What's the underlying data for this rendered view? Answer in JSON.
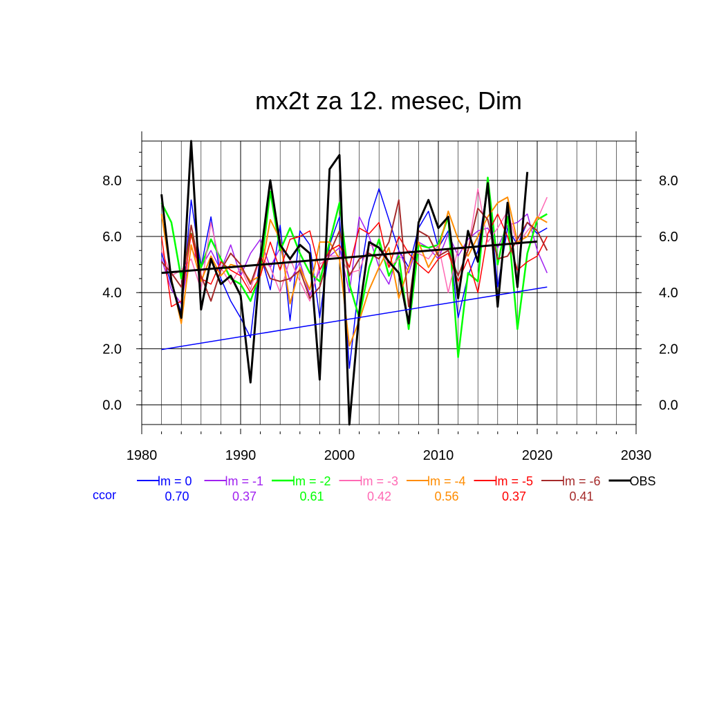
{
  "chart_data": {
    "type": "line",
    "title": "mx2t za 12. mesec, Dim",
    "xlim": [
      1980,
      2030
    ],
    "ylim": [
      -0.7,
      9.4
    ],
    "x_ticks": [
      1980,
      1990,
      2000,
      2010,
      2020,
      2030
    ],
    "x_tick_labels": [
      "1980",
      "1990",
      "2000",
      "2010",
      "2020",
      "2030"
    ],
    "y_ticks": [
      0,
      2,
      4,
      6,
      8
    ],
    "y_tick_labels": [
      "0.0",
      "2.0",
      "4.0",
      "6.0",
      "8.0"
    ],
    "grid": true,
    "legend_position": "bottom",
    "ccor_label": "ccor",
    "ccor_color": "#0000ff",
    "years_model": [
      1982,
      1983,
      1984,
      1985,
      1986,
      1987,
      1988,
      1989,
      1990,
      1991,
      1992,
      1993,
      1994,
      1995,
      1996,
      1997,
      1998,
      1999,
      2000,
      2001,
      2002,
      2003,
      2004,
      2005,
      2006,
      2007,
      2008,
      2009,
      2010,
      2011,
      2012,
      2013,
      2014,
      2015,
      2016,
      2017,
      2018,
      2019,
      2020,
      2021
    ],
    "series": [
      {
        "name": "lm = 0",
        "ccor": "0.70",
        "color": "#0000ff",
        "width": 1.5,
        "values": [
          5.4,
          4.3,
          3.3,
          7.3,
          4.9,
          6.7,
          4.5,
          3.7,
          3.1,
          2.4,
          5.4,
          4.1,
          6.4,
          3.0,
          6.2,
          5.7,
          3.1,
          5.7,
          6.7,
          1.3,
          4.4,
          6.6,
          7.7,
          6.6,
          5.5,
          4.9,
          6.3,
          6.9,
          5.6,
          6.2,
          3.1,
          4.6,
          5.5,
          7.9,
          4.2,
          6.3,
          5.7,
          6.5,
          6.1,
          6.3
        ]
      },
      {
        "name": "lm = -1",
        "ccor": "0.37",
        "color": "#a020f0",
        "width": 1.5,
        "values": [
          5.2,
          4.1,
          3.6,
          5.6,
          4.9,
          5.5,
          4.8,
          5.7,
          4.6,
          5.4,
          5.9,
          4.9,
          5.6,
          4.4,
          5.1,
          3.9,
          4.8,
          5.3,
          5.6,
          4.0,
          6.7,
          6.0,
          4.9,
          4.3,
          5.5,
          4.7,
          5.8,
          5.6,
          5.2,
          6.1,
          5.3,
          5.9,
          6.2,
          6.3,
          5.6,
          6.4,
          6.5,
          6.8,
          5.5,
          4.7
        ]
      },
      {
        "name": "lm = -2",
        "ccor": "0.61",
        "color": "#00ff00",
        "width": 2.5,
        "values": [
          7.2,
          6.5,
          4.5,
          6.1,
          4.9,
          5.9,
          5.2,
          4.5,
          4.3,
          3.7,
          4.7,
          7.6,
          5.5,
          6.3,
          5.4,
          4.7,
          4.4,
          5.8,
          7.2,
          4.3,
          3.1,
          4.9,
          5.9,
          4.6,
          5.3,
          2.7,
          5.7,
          5.6,
          5.7,
          6.7,
          1.7,
          4.7,
          4.4,
          8.1,
          5.0,
          6.7,
          2.7,
          5.4,
          6.6,
          6.8
        ]
      },
      {
        "name": "lm = -3",
        "ccor": "0.42",
        "color": "#ff69b4",
        "width": 1.5,
        "values": [
          5.5,
          4.6,
          4.8,
          5.2,
          4.1,
          6.5,
          4.9,
          4.3,
          4.9,
          4.1,
          5.3,
          4.9,
          4.0,
          5.2,
          4.4,
          3.7,
          5.0,
          5.3,
          5.3,
          4.7,
          4.8,
          5.7,
          5.6,
          4.9,
          5.2,
          5.5,
          5.4,
          5.2,
          5.7,
          4.0,
          5.6,
          5.5,
          7.7,
          5.8,
          6.3,
          6.9,
          5.7,
          6.2,
          6.6,
          7.4
        ]
      },
      {
        "name": "lm = -4",
        "ccor": "0.56",
        "color": "#ff8c00",
        "width": 2.0,
        "values": [
          6.8,
          4.5,
          2.9,
          5.7,
          4.4,
          5.3,
          4.6,
          5.0,
          4.9,
          4.4,
          4.6,
          6.6,
          5.9,
          3.6,
          4.9,
          4.1,
          5.8,
          5.8,
          5.2,
          2.1,
          3.0,
          4.1,
          4.9,
          5.6,
          3.8,
          4.9,
          5.8,
          4.9,
          5.5,
          6.9,
          5.9,
          5.3,
          6.0,
          6.7,
          7.2,
          7.4,
          5.8,
          6.0,
          6.7,
          6.5
        ]
      },
      {
        "name": "lm = -5",
        "ccor": "0.37",
        "color": "#ff0000",
        "width": 1.5,
        "values": [
          6.0,
          3.5,
          3.7,
          6.1,
          4.5,
          4.3,
          5.1,
          4.8,
          4.6,
          4.0,
          4.6,
          5.8,
          4.8,
          5.9,
          6.0,
          6.2,
          4.8,
          5.5,
          5.7,
          4.9,
          6.3,
          6.1,
          6.5,
          4.9,
          6.0,
          5.4,
          5.0,
          4.7,
          5.2,
          5.4,
          4.4,
          5.2,
          4.0,
          6.1,
          6.8,
          6.0,
          4.8,
          5.1,
          5.3,
          6.0
        ]
      },
      {
        "name": "lm = -6",
        "ccor": "0.41",
        "color": "#a52a2a",
        "width": 2.0,
        "values": [
          5.1,
          4.7,
          4.2,
          6.4,
          4.6,
          3.7,
          4.8,
          5.4,
          5.0,
          4.3,
          5.3,
          4.5,
          4.4,
          4.5,
          4.8,
          3.8,
          4.2,
          5.4,
          6.2,
          4.6,
          5.2,
          5.4,
          5.2,
          5.8,
          7.3,
          3.5,
          6.2,
          6.0,
          5.3,
          5.5,
          4.6,
          5.5,
          7.0,
          6.6,
          5.2,
          5.3,
          5.9,
          6.5,
          6.2,
          5.5
        ]
      },
      {
        "name": "OBS",
        "color": "#000000",
        "width": 3.0,
        "years": [
          1982,
          1983,
          1984,
          1985,
          1986,
          1987,
          1988,
          1989,
          1990,
          1991,
          1992,
          1993,
          1994,
          1995,
          1996,
          1997,
          1998,
          1999,
          2000,
          2001,
          2002,
          2003,
          2004,
          2005,
          2006,
          2007,
          2008,
          2009,
          2010,
          2011,
          2012,
          2013,
          2014,
          2015,
          2016,
          2017,
          2018,
          2019
        ],
        "values": [
          7.5,
          4.4,
          3.1,
          9.4,
          3.4,
          5.2,
          4.3,
          4.6,
          3.9,
          0.8,
          5.2,
          8.0,
          5.7,
          5.2,
          5.7,
          5.4,
          0.9,
          8.4,
          8.9,
          -0.7,
          3.3,
          5.8,
          5.6,
          5.1,
          4.7,
          2.9,
          6.5,
          7.3,
          6.3,
          6.7,
          3.8,
          6.2,
          5.1,
          7.9,
          3.5,
          7.2,
          4.2,
          8.3
        ]
      }
    ],
    "trend_lines": [
      {
        "name": "lm = 0 trend",
        "color": "#0000ff",
        "width": 1.5,
        "x": [
          1982,
          2021
        ],
        "y": [
          1.97,
          4.2
        ]
      },
      {
        "name": "OBS trend",
        "color": "#000000",
        "width": 3.0,
        "x": [
          1982,
          2020
        ],
        "y": [
          4.7,
          5.82
        ]
      }
    ]
  }
}
